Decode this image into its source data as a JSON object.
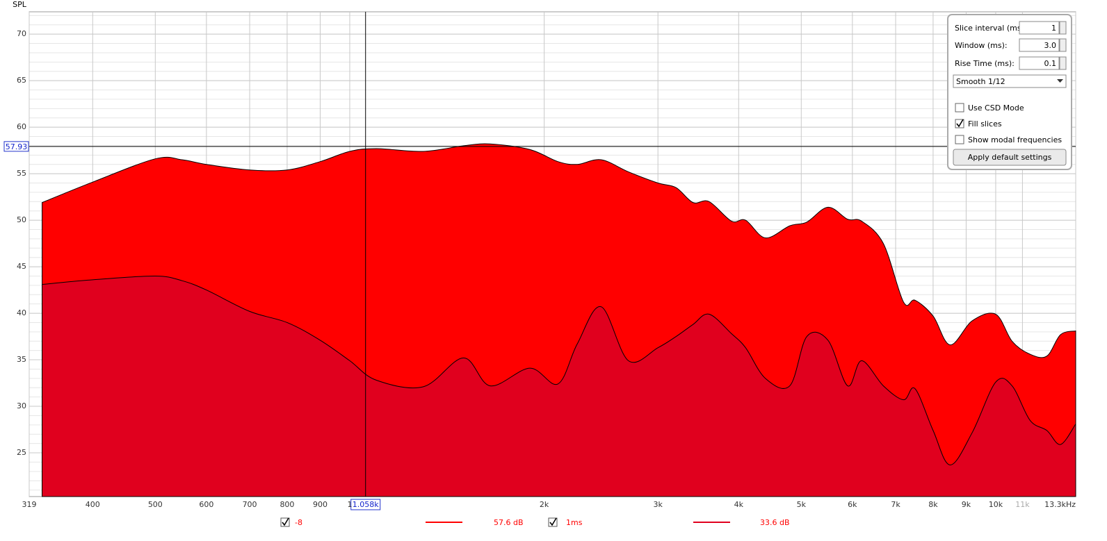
{
  "chart_data": {
    "type": "area",
    "y_axis_label": "SPL",
    "log_x": true,
    "grid": true,
    "xlim": [
      319,
      13300
    ],
    "xticks": [
      319,
      400,
      500,
      600,
      700,
      800,
      900,
      {
        "value": 1000,
        "label": "1"
      },
      {
        "value": 2000,
        "label": "2k"
      },
      {
        "value": 3000,
        "label": "3k"
      },
      {
        "value": 4000,
        "label": "4k"
      },
      {
        "value": 5000,
        "label": "5k"
      },
      {
        "value": 6000,
        "label": "6k"
      },
      {
        "value": 7000,
        "label": "7k"
      },
      {
        "value": 8000,
        "label": "8k"
      },
      {
        "value": 9000,
        "label": "9k"
      },
      {
        "value": 10000,
        "label": "10k"
      },
      {
        "value": 11000,
        "label": "11k"
      },
      {
        "value": 13300,
        "label": "13.3kHz"
      }
    ],
    "ylim": [
      20.3,
      72.4
    ],
    "yticks": [
      25,
      30,
      35,
      40,
      45,
      50,
      55,
      60,
      65,
      70
    ],
    "x": [
      334,
      400,
      500,
      550,
      600,
      700,
      800,
      900,
      1000,
      1100,
      1300,
      1500,
      1650,
      1900,
      2100,
      2250,
      2450,
      2700,
      3000,
      3200,
      3400,
      3600,
      3900,
      4100,
      4400,
      4800,
      5100,
      5500,
      5900,
      6200,
      6700,
      7200,
      7500,
      8000,
      8500,
      9200,
      10000,
      10600,
      11300,
      12000,
      12600,
      13300
    ],
    "series": [
      {
        "name": "-8",
        "color": "#ff0000",
        "values": [
          51.9,
          54.1,
          56.6,
          56.5,
          56.0,
          55.4,
          55.4,
          56.3,
          57.4,
          57.7,
          57.4,
          58.0,
          58.2,
          57.6,
          56.3,
          56.0,
          56.5,
          55.2,
          54.0,
          53.5,
          51.9,
          52.0,
          49.9,
          50.0,
          48.1,
          49.4,
          49.8,
          51.4,
          50.1,
          49.9,
          47.5,
          41.2,
          41.4,
          39.7,
          36.6,
          39.2,
          39.9,
          37.0,
          35.6,
          35.4,
          37.7,
          38.1
        ]
      },
      {
        "name": "1ms",
        "color": "#e0001e",
        "values": [
          43.1,
          43.6,
          44.0,
          43.5,
          42.5,
          40.2,
          39.0,
          37.1,
          34.9,
          32.8,
          32.1,
          35.2,
          32.2,
          34.1,
          32.4,
          36.7,
          40.7,
          34.9,
          36.3,
          37.5,
          38.8,
          39.9,
          37.8,
          36.3,
          33.0,
          32.2,
          37.5,
          37.1,
          32.2,
          34.9,
          32.2,
          30.7,
          31.9,
          27.4,
          23.7,
          27.2,
          32.6,
          32.2,
          28.5,
          27.4,
          25.9,
          28.1
        ]
      }
    ],
    "cursor": {
      "x": 1058,
      "x_label": "1.058k",
      "y": 57.93,
      "readouts": [
        "57.6 dB",
        "33.6 dB"
      ]
    }
  },
  "panel": {
    "slice_interval_label": "Slice interval (ms):",
    "slice_interval": 1,
    "window_label": "Window (ms):",
    "window": "3.0",
    "rise_time_label": "Rise Time (ms):",
    "rise_time": "0.1",
    "smoothing": "Smooth 1/12",
    "options": [
      {
        "label": "Use CSD Mode",
        "checked": false
      },
      {
        "label": "Fill slices",
        "checked": true
      },
      {
        "label": "Show modal frequencies",
        "checked": false
      }
    ],
    "apply": "Apply default settings"
  }
}
